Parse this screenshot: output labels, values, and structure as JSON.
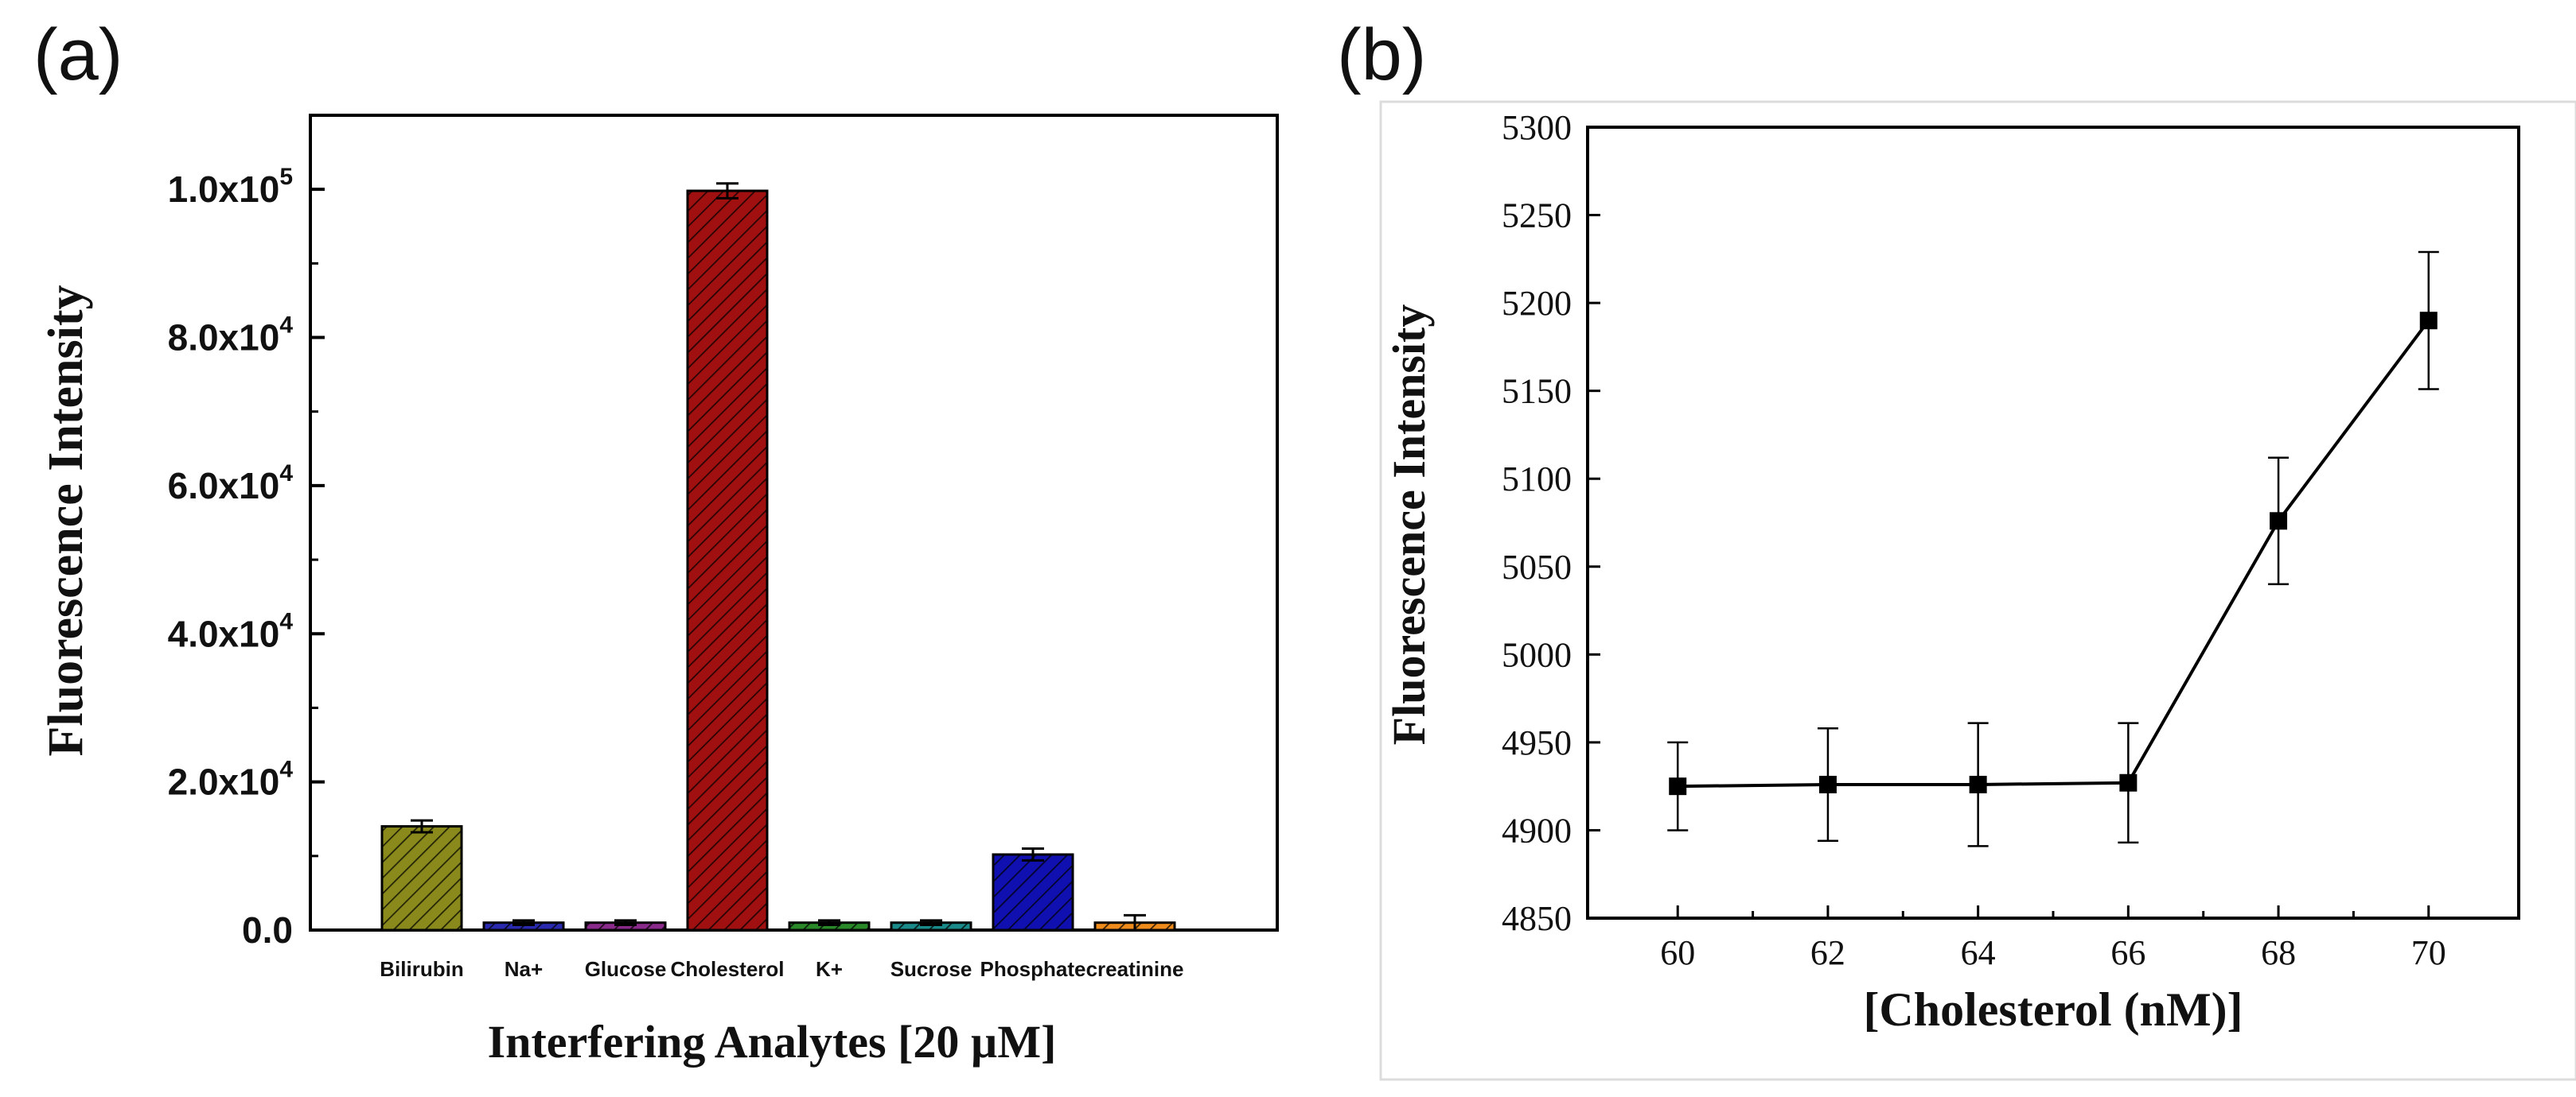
{
  "panels": {
    "a_label": "(a)",
    "b_label": "(b)"
  },
  "chart_data": [
    {
      "type": "bar",
      "title": "",
      "xlabel": "Interfering Analytes [20 µM]",
      "ylabel": "Fluorescence Intensity",
      "ylim": [
        0,
        110000
      ],
      "y_ticks": [
        {
          "value": 0,
          "mantissa": "0.0",
          "exp": ""
        },
        {
          "value": 20000,
          "mantissa": "2.0x10",
          "exp": "4"
        },
        {
          "value": 40000,
          "mantissa": "4.0x10",
          "exp": "4"
        },
        {
          "value": 60000,
          "mantissa": "6.0x10",
          "exp": "4"
        },
        {
          "value": 80000,
          "mantissa": "8.0x10",
          "exp": "4"
        },
        {
          "value": 100000,
          "mantissa": "1.0x10",
          "exp": "5"
        }
      ],
      "categories": [
        "Bilirubin",
        "Na+",
        "Glucose",
        "Cholesterol",
        "K+",
        "Sucrose",
        "Phosphate",
        "creatinine"
      ],
      "values": [
        14000,
        1000,
        1000,
        99800,
        1000,
        1000,
        10200,
        1000
      ],
      "errors": [
        800,
        300,
        300,
        1000,
        300,
        300,
        800,
        1000
      ],
      "colors": [
        "#8a8a1c",
        "#2a2ab0",
        "#8a2a8a",
        "#a01010",
        "#2a8a2a",
        "#1a8a8a",
        "#1010b0",
        "#f08c1c"
      ]
    },
    {
      "type": "line",
      "title": "",
      "xlabel": "[Cholesterol (nM)]",
      "ylabel": "Fluorescence Intensity",
      "xlim": [
        58.8,
        71.2
      ],
      "ylim": [
        4850,
        5300
      ],
      "x_ticks": [
        60,
        62,
        64,
        66,
        68,
        70
      ],
      "y_ticks": [
        4850,
        4900,
        4950,
        5000,
        5050,
        5100,
        5150,
        5200,
        5250,
        5300
      ],
      "x": [
        60,
        62,
        64,
        66,
        68,
        70
      ],
      "y": [
        4925,
        4926,
        4926,
        4927,
        5076,
        5190
      ],
      "errors": [
        25,
        32,
        35,
        34,
        36,
        39
      ],
      "color": "#000000"
    }
  ]
}
